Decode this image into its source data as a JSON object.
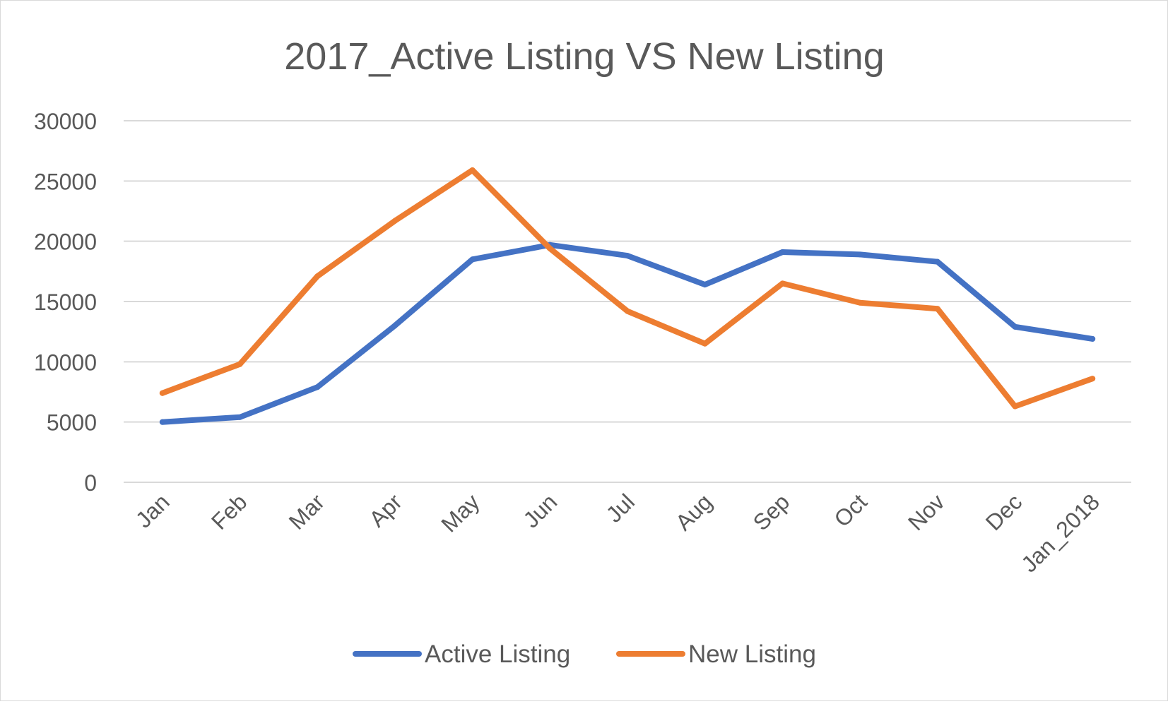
{
  "chart_data": {
    "type": "line",
    "title": "2017_Active Listing VS New Listing",
    "xlabel": "",
    "ylabel": "",
    "categories": [
      "Jan",
      "Feb",
      "Mar",
      "Apr",
      "May",
      "Jun",
      "Jul",
      "Aug",
      "Sep",
      "Oct",
      "Nov",
      "Dec",
      "Jan_2018"
    ],
    "ylim": [
      0,
      30000
    ],
    "yticks": [
      "0",
      "5000",
      "10000",
      "15000",
      "20000",
      "25000",
      "30000"
    ],
    "grid": true,
    "legend_position": "bottom",
    "series": [
      {
        "name": "Active Listing",
        "color": "#4472c4",
        "values": [
          5000,
          5400,
          7900,
          13000,
          18500,
          19700,
          18800,
          16400,
          19100,
          18900,
          18300,
          12900,
          11900
        ]
      },
      {
        "name": "New Listing",
        "color": "#ed7d31",
        "values": [
          7400,
          9800,
          17100,
          21700,
          25900,
          19400,
          14200,
          11500,
          16500,
          14900,
          14400,
          6300,
          8600
        ]
      }
    ]
  }
}
